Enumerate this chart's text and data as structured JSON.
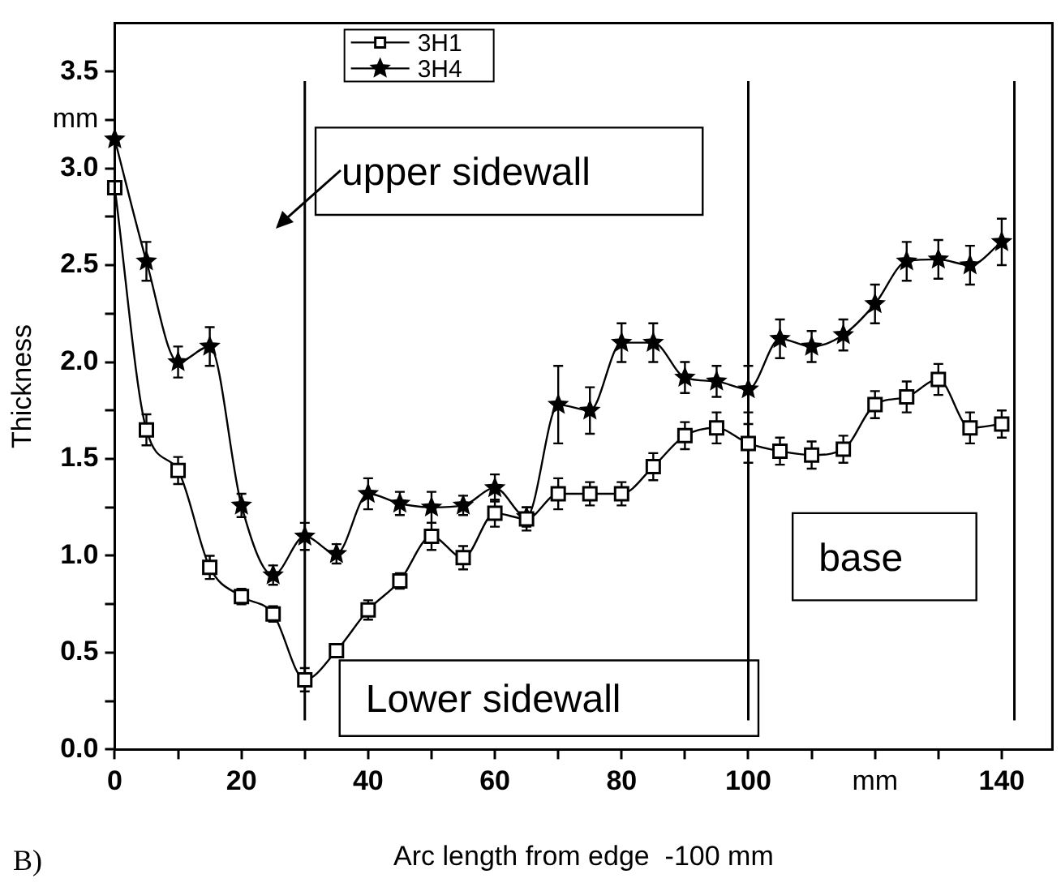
{
  "chart_data": {
    "type": "line",
    "xlabel": "Arc length from edge  -100 mm",
    "ylabel": "Thickness",
    "x": [
      0,
      5,
      10,
      15,
      20,
      25,
      30,
      35,
      40,
      45,
      50,
      55,
      60,
      65,
      70,
      75,
      80,
      85,
      90,
      95,
      100,
      105,
      110,
      115,
      120,
      125,
      130,
      135,
      140
    ],
    "series": [
      {
        "name": "3H1",
        "color": "#000000",
        "marker": "square",
        "values": [
          2.9,
          1.65,
          1.44,
          0.94,
          0.79,
          0.7,
          0.36,
          0.51,
          0.72,
          0.87,
          1.1,
          0.99,
          1.22,
          1.19,
          1.32,
          1.32,
          1.32,
          1.46,
          1.62,
          1.66,
          1.58,
          1.54,
          1.52,
          1.55,
          1.78,
          1.82,
          1.91,
          1.66,
          1.68
        ],
        "errors": [
          null,
          0.08,
          0.07,
          0.06,
          0.04,
          0.04,
          0.06,
          null,
          0.05,
          0.04,
          0.07,
          0.06,
          0.07,
          0.06,
          0.08,
          0.06,
          0.06,
          0.07,
          0.07,
          0.08,
          0.1,
          0.07,
          0.07,
          0.07,
          0.07,
          0.08,
          0.08,
          0.08,
          0.07
        ]
      },
      {
        "name": "3H4",
        "color": "#000000",
        "marker": "star",
        "values": [
          3.15,
          2.52,
          2.0,
          2.08,
          1.26,
          0.9,
          1.1,
          1.01,
          1.32,
          1.27,
          1.25,
          1.26,
          1.35,
          1.2,
          1.78,
          1.75,
          2.1,
          2.1,
          1.92,
          1.9,
          1.86,
          2.12,
          2.08,
          2.14,
          2.3,
          2.52,
          2.53,
          2.5,
          2.62
        ],
        "errors": [
          null,
          0.1,
          0.08,
          0.1,
          0.06,
          0.05,
          0.07,
          0.05,
          0.08,
          0.06,
          0.08,
          0.05,
          0.07,
          0.05,
          0.2,
          0.12,
          0.1,
          0.1,
          0.08,
          0.08,
          0.12,
          0.1,
          0.08,
          0.08,
          0.1,
          0.1,
          0.1,
          0.1,
          0.12
        ]
      }
    ],
    "xlim": [
      0,
      148
    ],
    "xticks": [
      0,
      {
        "value": 10,
        "label": null
      },
      20,
      {
        "value": 30,
        "label": null
      },
      40,
      {
        "value": 50,
        "label": null
      },
      60,
      {
        "value": 70,
        "label": null
      },
      80,
      {
        "value": 90,
        "label": null
      },
      100,
      {
        "value": 110,
        "label": null
      },
      {
        "value": 120,
        "label": "mm"
      },
      {
        "value": 130,
        "label": null
      },
      140
    ],
    "ylim": [
      0,
      3.75
    ],
    "yticks": [
      {
        "value": 0,
        "label": "0.0"
      },
      {
        "value": 0.25,
        "label": null
      },
      {
        "value": 0.5,
        "label": "0.5"
      },
      {
        "value": 0.75,
        "label": null
      },
      {
        "value": 1,
        "label": "1.0"
      },
      {
        "value": 1.25,
        "label": null
      },
      {
        "value": 1.5,
        "label": "1.5"
      },
      {
        "value": 1.75,
        "label": null
      },
      {
        "value": 2,
        "label": "2.0"
      },
      {
        "value": 2.25,
        "label": null
      },
      {
        "value": 2.5,
        "label": "2.5"
      },
      {
        "value": 2.75,
        "label": null
      },
      {
        "value": 3,
        "label": "3.0"
      },
      {
        "value": 3.25,
        "label": "mm"
      },
      {
        "value": 3.5,
        "label": "3.5"
      }
    ],
    "ref_lines": [
      {
        "axis": "x",
        "value": 30,
        "color": "#000000"
      },
      {
        "axis": "x",
        "value": 100,
        "color": "#000000"
      },
      {
        "axis": "x",
        "value": 142,
        "color": "#000000"
      }
    ],
    "annotations": [
      "upper sidewall",
      "Lower sidewall",
      "base",
      "B)"
    ],
    "legend": "top",
    "grid": false
  }
}
